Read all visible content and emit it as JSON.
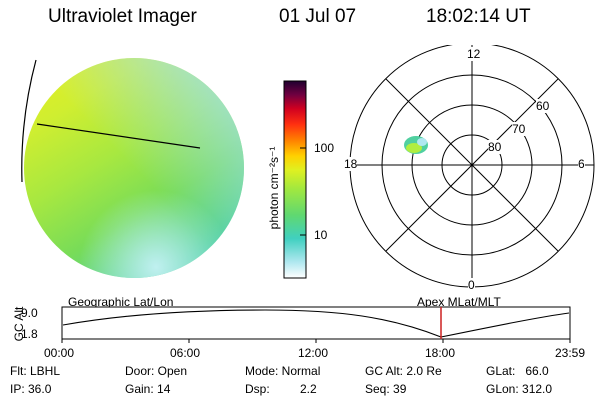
{
  "header": {
    "instrument": "Ultraviolet Imager",
    "date": "01 Jul 07",
    "time": "18:02:14 UT"
  },
  "colorbar": {
    "unit_label": "photon cm⁻²s⁻¹",
    "ticks": [
      "100",
      "10"
    ],
    "scale": "log",
    "colors": [
      "#ffffff",
      "#b0e8f0",
      "#40d0c0",
      "#70e060",
      "#c0f040",
      "#f0f020",
      "#ffa000",
      "#ff4000",
      "#e00020",
      "#900040",
      "#300040"
    ]
  },
  "polar_plot": {
    "hour_labels": {
      "top": "12",
      "right": "6",
      "bottom": "0",
      "left": "18"
    },
    "lat_labels": [
      "60",
      "70",
      "80"
    ]
  },
  "timeline": {
    "left_label": "Geographic Lat/Lon",
    "right_label": "Apex  MLat/MLT",
    "yaxis_label": "GC Alt",
    "ymax": "9.0",
    "ymin": "1.8",
    "ticks": [
      "00:00",
      "06:00",
      "12:00",
      "18:00",
      "23:59"
    ],
    "marker_color": "#cc2020"
  },
  "status": {
    "flt": "Flt: LBHL",
    "ip": "IP: 36.0",
    "door": "Door: Open",
    "gain": "Gain: 14",
    "mode": "Mode: Normal",
    "dsp_label": "Dsp:",
    "dsp_value": "2.2",
    "gcalt": "GC Alt: 2.0 Re",
    "seq": "Seq: 39",
    "glat": "GLat:   66.0",
    "glon": "GLon: 312.0"
  }
}
